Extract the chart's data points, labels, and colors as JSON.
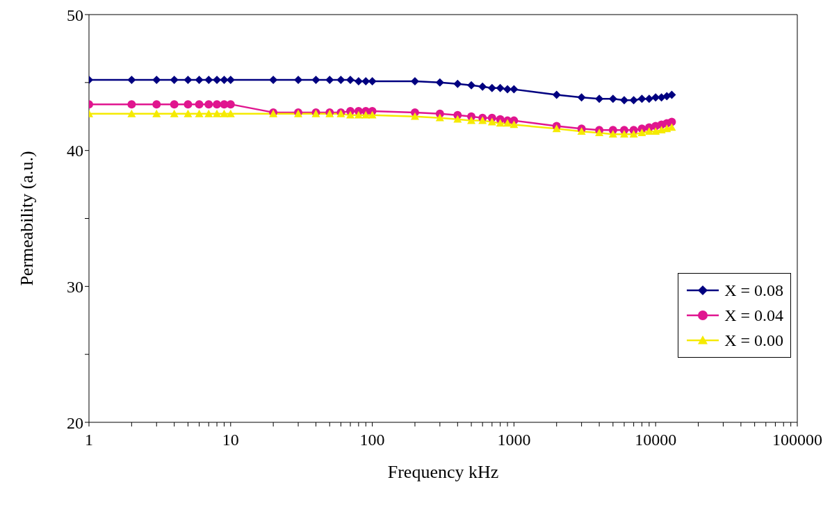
{
  "chart_data": {
    "type": "line",
    "xlabel": "Frequency kHz",
    "ylabel": "Permeability (a.u.)",
    "log": "x",
    "grid": false,
    "legend": "right",
    "line_style": "solid",
    "x": [
      1,
      2,
      3,
      4,
      5,
      6,
      7,
      8,
      9,
      10,
      20,
      30,
      40,
      50,
      60,
      70,
      80,
      90,
      100,
      200,
      300,
      400,
      500,
      600,
      700,
      800,
      900,
      1000,
      2000,
      3000,
      4000,
      5000,
      6000,
      7000,
      8000,
      9000,
      10000,
      11000,
      12000,
      13000
    ],
    "xlim": [
      1,
      100000
    ],
    "xticks": [
      1,
      {
        "value": 2,
        "label": null
      },
      {
        "value": 3,
        "label": null
      },
      {
        "value": 4,
        "label": null
      },
      {
        "value": 5,
        "label": null
      },
      {
        "value": 6,
        "label": null
      },
      {
        "value": 7,
        "label": null
      },
      {
        "value": 8,
        "label": null
      },
      {
        "value": 9,
        "label": null
      },
      10,
      {
        "value": 20,
        "label": null
      },
      {
        "value": 30,
        "label": null
      },
      {
        "value": 40,
        "label": null
      },
      {
        "value": 50,
        "label": null
      },
      {
        "value": 60,
        "label": null
      },
      {
        "value": 70,
        "label": null
      },
      {
        "value": 80,
        "label": null
      },
      {
        "value": 90,
        "label": null
      },
      100,
      {
        "value": 200,
        "label": null
      },
      {
        "value": 300,
        "label": null
      },
      {
        "value": 400,
        "label": null
      },
      {
        "value": 500,
        "label": null
      },
      {
        "value": 600,
        "label": null
      },
      {
        "value": 700,
        "label": null
      },
      {
        "value": 800,
        "label": null
      },
      {
        "value": 900,
        "label": null
      },
      1000,
      {
        "value": 2000,
        "label": null
      },
      {
        "value": 3000,
        "label": null
      },
      {
        "value": 4000,
        "label": null
      },
      {
        "value": 5000,
        "label": null
      },
      {
        "value": 6000,
        "label": null
      },
      {
        "value": 7000,
        "label": null
      },
      {
        "value": 8000,
        "label": null
      },
      {
        "value": 9000,
        "label": null
      },
      10000,
      {
        "value": 20000,
        "label": null
      },
      {
        "value": 30000,
        "label": null
      },
      {
        "value": 40000,
        "label": null
      },
      {
        "value": 50000,
        "label": null
      },
      {
        "value": 60000,
        "label": null
      },
      {
        "value": 70000,
        "label": null
      },
      {
        "value": 80000,
        "label": null
      },
      {
        "value": 90000,
        "label": null
      },
      100000
    ],
    "ylim": [
      20,
      50
    ],
    "yticks": [
      20,
      {
        "value": 25,
        "label": null
      },
      30,
      {
        "value": 35,
        "label": null
      },
      40,
      {
        "value": 45,
        "label": null
      },
      50
    ],
    "series": [
      {
        "name": "X = 0.08",
        "color": "#000080",
        "marker": "diamond",
        "values": [
          45.2,
          45.2,
          45.2,
          45.2,
          45.2,
          45.2,
          45.2,
          45.2,
          45.2,
          45.2,
          45.2,
          45.2,
          45.2,
          45.2,
          45.2,
          45.2,
          45.1,
          45.1,
          45.1,
          45.1,
          45.0,
          44.9,
          44.8,
          44.7,
          44.6,
          44.6,
          44.5,
          44.5,
          44.1,
          43.9,
          43.8,
          43.8,
          43.7,
          43.7,
          43.8,
          43.8,
          43.9,
          43.9,
          44.0,
          44.1
        ]
      },
      {
        "name": "X = 0.04",
        "color": "#e0158f",
        "marker": "circle",
        "values": [
          43.4,
          43.4,
          43.4,
          43.4,
          43.4,
          43.4,
          43.4,
          43.4,
          43.4,
          43.4,
          42.8,
          42.8,
          42.8,
          42.8,
          42.8,
          42.9,
          42.9,
          42.9,
          42.9,
          42.8,
          42.7,
          42.6,
          42.5,
          42.4,
          42.4,
          42.3,
          42.2,
          42.2,
          41.8,
          41.6,
          41.5,
          41.5,
          41.5,
          41.5,
          41.6,
          41.7,
          41.8,
          41.9,
          42.0,
          42.1
        ]
      },
      {
        "name": "X = 0.00",
        "color": "#f5ea00",
        "marker": "triangle",
        "values": [
          42.7,
          42.7,
          42.7,
          42.7,
          42.7,
          42.7,
          42.7,
          42.7,
          42.7,
          42.7,
          42.7,
          42.7,
          42.7,
          42.7,
          42.7,
          42.6,
          42.6,
          42.6,
          42.6,
          42.5,
          42.4,
          42.3,
          42.2,
          42.2,
          42.1,
          42.0,
          42.0,
          41.9,
          41.6,
          41.4,
          41.3,
          41.2,
          41.2,
          41.2,
          41.3,
          41.4,
          41.4,
          41.5,
          41.6,
          41.7
        ]
      }
    ]
  }
}
